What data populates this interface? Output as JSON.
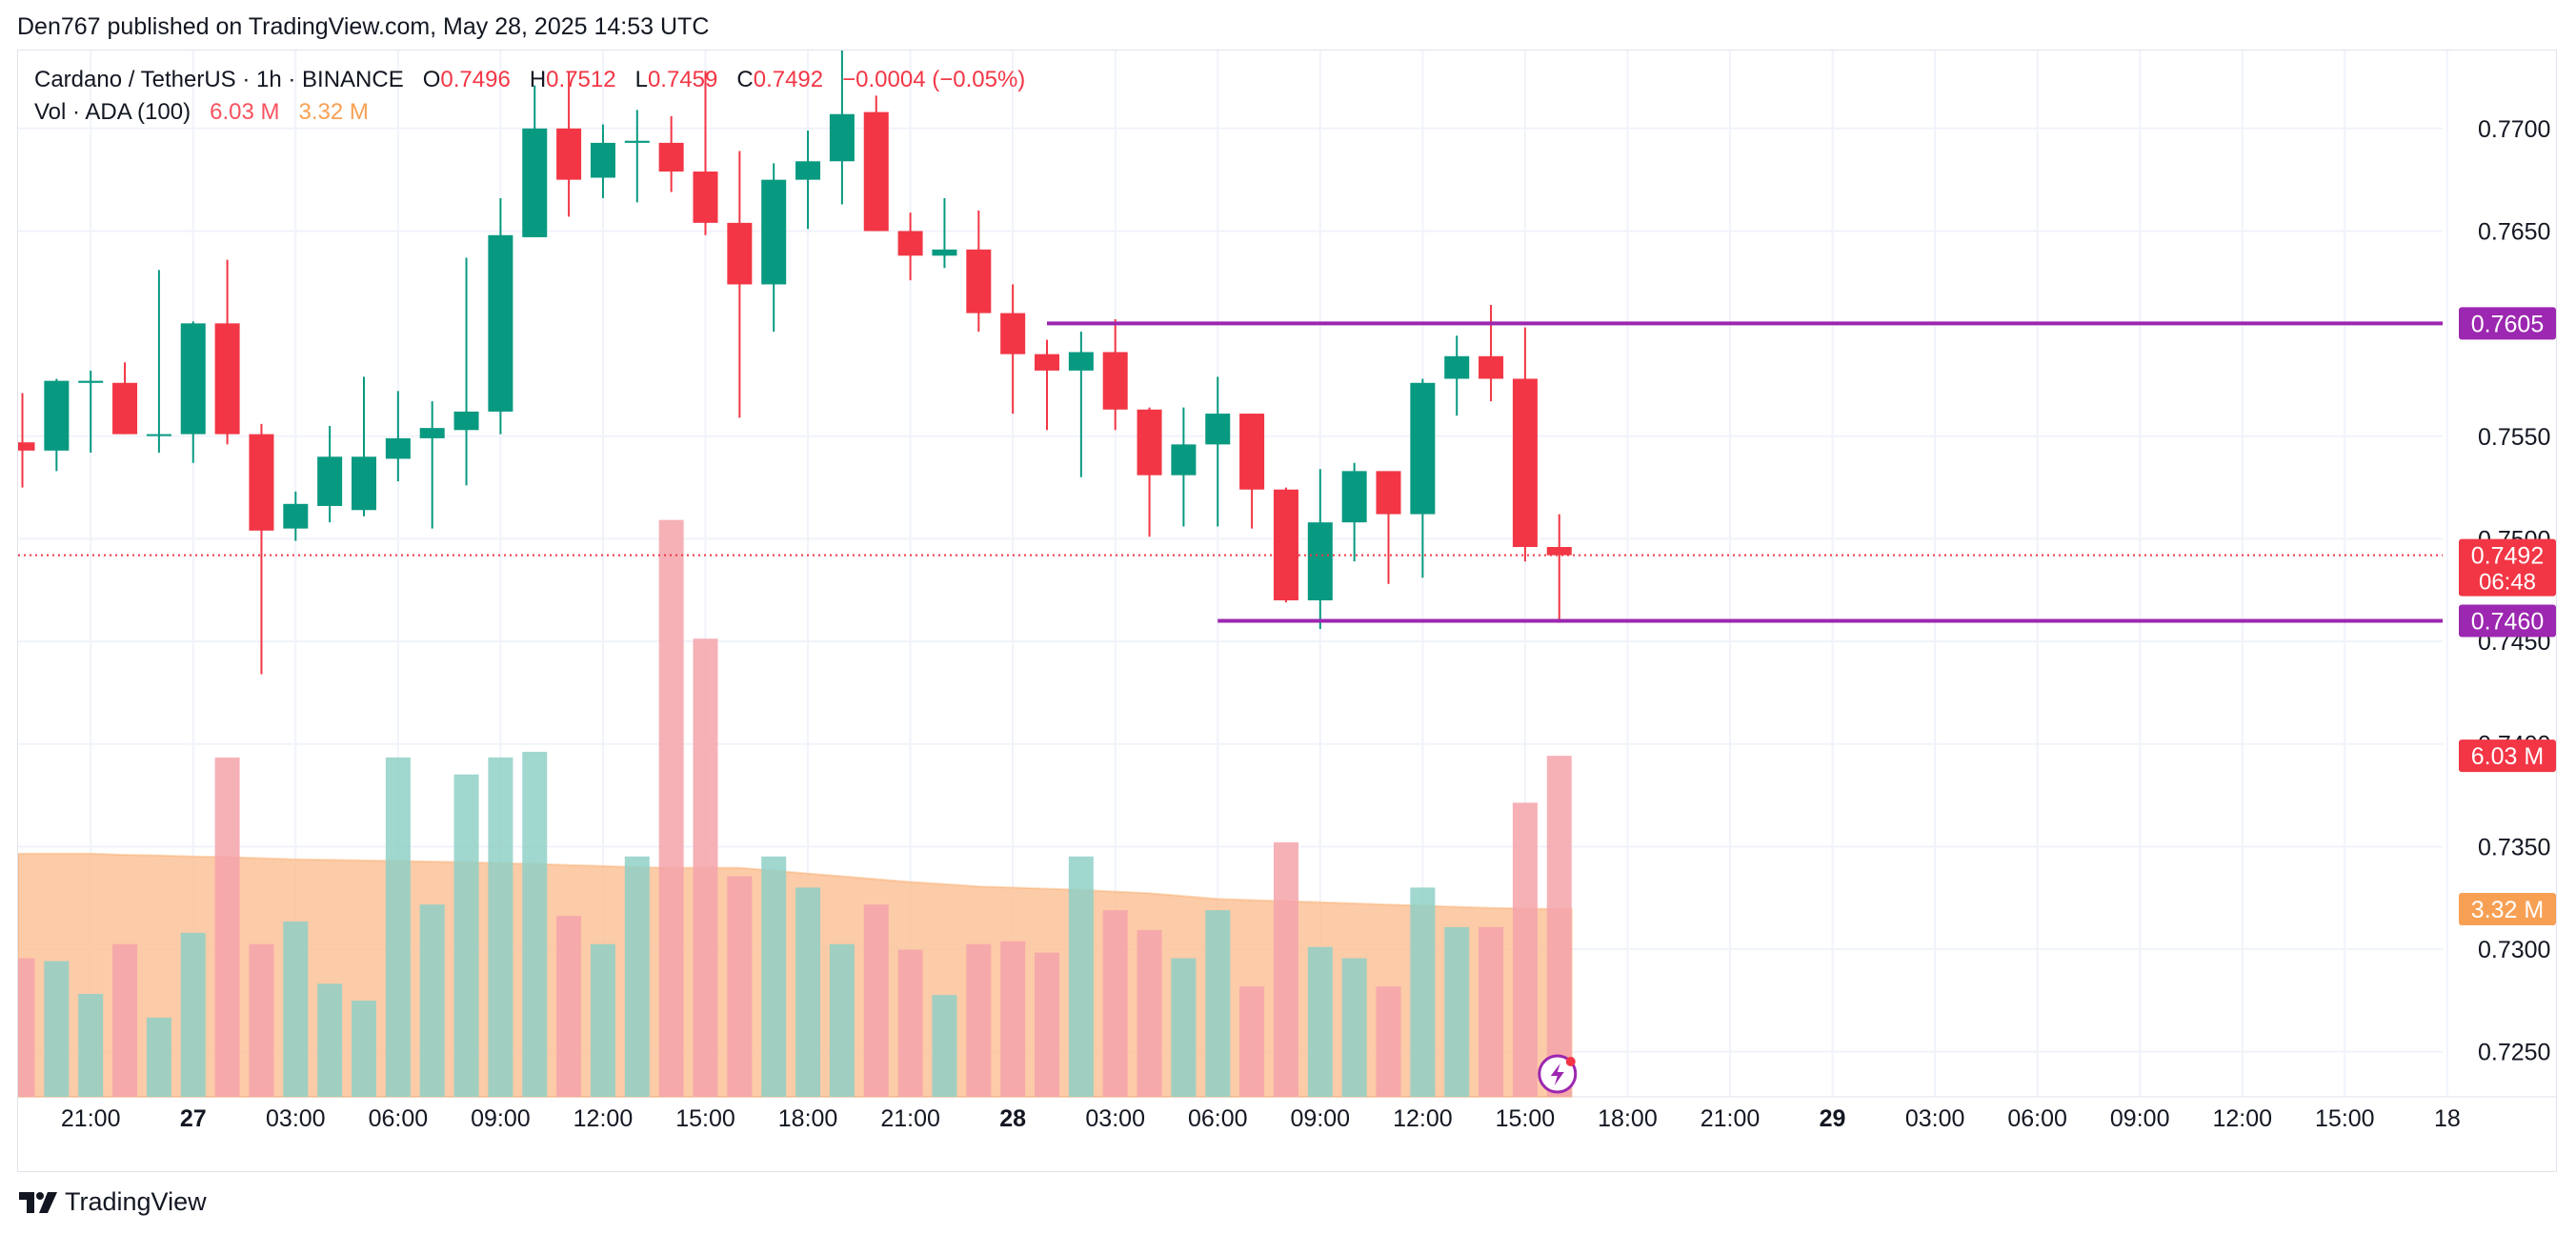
{
  "header": {
    "published_text": "Den767 published on TradingView.com, May 28, 2025 14:53 UTC"
  },
  "legend": {
    "symbol": "Cardano / TetherUS · 1h · BINANCE",
    "o_label": "O",
    "o_value": "0.7496",
    "h_label": "H",
    "h_value": "0.7512",
    "l_label": "L",
    "l_value": "0.7459",
    "c_label": "C",
    "c_value": "0.7492",
    "change": "−0.0004 (−0.05%)",
    "vol_label": "Vol · ADA (100)",
    "vol_value": "6.03 M",
    "vol_ma_value": "3.32 M"
  },
  "footer": {
    "brand": "TradingView"
  },
  "colors": {
    "up": "#089981",
    "down": "#f23645",
    "vol_up": "#8fd0c5",
    "vol_down": "#f5a3aa",
    "vol_ma": "#fbc299",
    "level": "#9c27b0",
    "grid": "#f0f3fa",
    "text": "#131722"
  },
  "chart_data": {
    "type": "candlestick",
    "title": "Cardano / TetherUS · 1h · BINANCE",
    "price_axis": {
      "ylim": [
        0.7228,
        0.7738
      ],
      "ticks": [
        "0.7700",
        "0.7650",
        "0.7550",
        "0.7500",
        "0.7450",
        "0.7400",
        "0.7350",
        "0.7300",
        "0.7250"
      ],
      "tick_values": [
        0.77,
        0.765,
        0.755,
        0.75,
        0.745,
        0.74,
        0.735,
        0.73,
        0.725
      ]
    },
    "time_axis": {
      "labels": [
        "21:00",
        "27",
        "03:00",
        "06:00",
        "09:00",
        "12:00",
        "15:00",
        "18:00",
        "21:00",
        "28",
        "03:00",
        "06:00",
        "09:00",
        "12:00",
        "15:00",
        "18:00",
        "21:00",
        "29",
        "03:00",
        "06:00",
        "09:00",
        "12:00",
        "15:00",
        "18"
      ],
      "bold_labels": [
        "27",
        "28",
        "29"
      ],
      "label_bar_index": [
        2,
        5,
        8,
        11,
        14,
        17,
        20,
        23,
        26,
        29,
        32,
        35,
        38,
        41,
        44,
        47,
        50,
        53,
        56,
        59,
        62,
        65,
        68,
        71
      ]
    },
    "candles": [
      {
        "o": 0.7547,
        "h": 0.7571,
        "l": 0.7525,
        "c": 0.7543
      },
      {
        "o": 0.7543,
        "h": 0.7578,
        "l": 0.7533,
        "c": 0.7577
      },
      {
        "o": 0.7576,
        "h": 0.7582,
        "l": 0.7542,
        "c": 0.7577
      },
      {
        "o": 0.7576,
        "h": 0.7586,
        "l": 0.7551,
        "c": 0.7551
      },
      {
        "o": 0.7551,
        "h": 0.7631,
        "l": 0.7542,
        "c": 0.7551
      },
      {
        "o": 0.7551,
        "h": 0.7606,
        "l": 0.7537,
        "c": 0.7605
      },
      {
        "o": 0.7605,
        "h": 0.7636,
        "l": 0.7546,
        "c": 0.7551
      },
      {
        "o": 0.7551,
        "h": 0.7556,
        "l": 0.7434,
        "c": 0.7504
      },
      {
        "o": 0.7505,
        "h": 0.7523,
        "l": 0.7499,
        "c": 0.7517
      },
      {
        "o": 0.7516,
        "h": 0.7555,
        "l": 0.7508,
        "c": 0.754
      },
      {
        "o": 0.7514,
        "h": 0.7579,
        "l": 0.7511,
        "c": 0.754
      },
      {
        "o": 0.7539,
        "h": 0.7572,
        "l": 0.7528,
        "c": 0.7549
      },
      {
        "o": 0.7549,
        "h": 0.7567,
        "l": 0.7505,
        "c": 0.7554
      },
      {
        "o": 0.7553,
        "h": 0.7637,
        "l": 0.7526,
        "c": 0.7562
      },
      {
        "o": 0.7562,
        "h": 0.7666,
        "l": 0.7551,
        "c": 0.7648
      },
      {
        "o": 0.7647,
        "h": 0.7721,
        "l": 0.7647,
        "c": 0.77
      },
      {
        "o": 0.77,
        "h": 0.7728,
        "l": 0.7657,
        "c": 0.7675
      },
      {
        "o": 0.7676,
        "h": 0.7702,
        "l": 0.7666,
        "c": 0.7693
      },
      {
        "o": 0.7693,
        "h": 0.7709,
        "l": 0.7664,
        "c": 0.7694
      },
      {
        "o": 0.7693,
        "h": 0.7706,
        "l": 0.7669,
        "c": 0.7679
      },
      {
        "o": 0.7679,
        "h": 0.7728,
        "l": 0.7648,
        "c": 0.7654
      },
      {
        "o": 0.7654,
        "h": 0.7689,
        "l": 0.7559,
        "c": 0.7624
      },
      {
        "o": 0.7624,
        "h": 0.7683,
        "l": 0.7601,
        "c": 0.7675
      },
      {
        "o": 0.7675,
        "h": 0.7699,
        "l": 0.7651,
        "c": 0.7684
      },
      {
        "o": 0.7684,
        "h": 0.7738,
        "l": 0.7663,
        "c": 0.7707
      },
      {
        "o": 0.7708,
        "h": 0.7716,
        "l": 0.765,
        "c": 0.765
      },
      {
        "o": 0.765,
        "h": 0.7659,
        "l": 0.7626,
        "c": 0.7638
      },
      {
        "o": 0.7638,
        "h": 0.7666,
        "l": 0.7632,
        "c": 0.7641
      },
      {
        "o": 0.7641,
        "h": 0.766,
        "l": 0.7601,
        "c": 0.761
      },
      {
        "o": 0.761,
        "h": 0.7624,
        "l": 0.7561,
        "c": 0.759
      },
      {
        "o": 0.759,
        "h": 0.7597,
        "l": 0.7553,
        "c": 0.7582
      },
      {
        "o": 0.7582,
        "h": 0.7601,
        "l": 0.753,
        "c": 0.7591
      },
      {
        "o": 0.7591,
        "h": 0.7607,
        "l": 0.7553,
        "c": 0.7563
      },
      {
        "o": 0.7563,
        "h": 0.7564,
        "l": 0.7501,
        "c": 0.7531
      },
      {
        "o": 0.7531,
        "h": 0.7564,
        "l": 0.7506,
        "c": 0.7546
      },
      {
        "o": 0.7546,
        "h": 0.7579,
        "l": 0.7506,
        "c": 0.7561
      },
      {
        "o": 0.7561,
        "h": 0.7561,
        "l": 0.7505,
        "c": 0.7524
      },
      {
        "o": 0.7524,
        "h": 0.7525,
        "l": 0.7469,
        "c": 0.747
      },
      {
        "o": 0.747,
        "h": 0.7534,
        "l": 0.7456,
        "c": 0.7508
      },
      {
        "o": 0.7508,
        "h": 0.7537,
        "l": 0.7489,
        "c": 0.7533
      },
      {
        "o": 0.7533,
        "h": 0.7532,
        "l": 0.7478,
        "c": 0.7512
      },
      {
        "o": 0.7512,
        "h": 0.7578,
        "l": 0.7481,
        "c": 0.7576
      },
      {
        "o": 0.7578,
        "h": 0.7599,
        "l": 0.756,
        "c": 0.7589
      },
      {
        "o": 0.7589,
        "h": 0.7614,
        "l": 0.7567,
        "c": 0.7578
      },
      {
        "o": 0.7578,
        "h": 0.7603,
        "l": 0.7489,
        "c": 0.7496
      },
      {
        "o": 0.7496,
        "h": 0.7512,
        "l": 0.7459,
        "c": 0.7492
      }
    ],
    "volume": {
      "values": [
        2.45,
        2.4,
        1.82,
        2.7,
        1.4,
        2.9,
        6.0,
        2.7,
        3.1,
        2.0,
        1.7,
        6.0,
        3.4,
        5.7,
        6.0,
        6.1,
        3.2,
        2.7,
        4.25,
        10.2,
        8.1,
        3.9,
        4.25,
        3.7,
        2.7,
        3.4,
        2.6,
        1.8,
        2.7,
        2.75,
        2.55,
        4.25,
        3.3,
        2.95,
        2.45,
        3.3,
        1.95,
        4.5,
        2.65,
        2.45,
        1.95,
        3.7,
        3.0,
        3.0,
        5.2,
        6.03
      ],
      "ma": [
        4.3,
        4.3,
        4.3,
        4.28,
        4.27,
        4.25,
        4.24,
        4.22,
        4.2,
        4.19,
        4.18,
        4.17,
        4.16,
        4.15,
        4.13,
        4.12,
        4.1,
        4.08,
        4.06,
        4.05,
        4.05,
        4.05,
        4.0,
        3.95,
        3.9,
        3.85,
        3.8,
        3.76,
        3.72,
        3.7,
        3.68,
        3.66,
        3.63,
        3.6,
        3.55,
        3.5,
        3.48,
        3.46,
        3.44,
        3.42,
        3.4,
        3.38,
        3.36,
        3.34,
        3.33,
        3.32
      ],
      "ymax": 18.5
    },
    "levels": [
      {
        "label": "0.7605",
        "value": 0.7605,
        "start_bar": 30
      },
      {
        "label": "0.7460",
        "value": 0.746,
        "start_bar": 35
      }
    ],
    "last_price": {
      "label": "0.7492",
      "value": 0.7492,
      "countdown": "06:48"
    },
    "volume_badges": [
      {
        "label": "6.03 M",
        "kind": "vol"
      },
      {
        "label": "3.32 M",
        "kind": "ma"
      }
    ]
  }
}
